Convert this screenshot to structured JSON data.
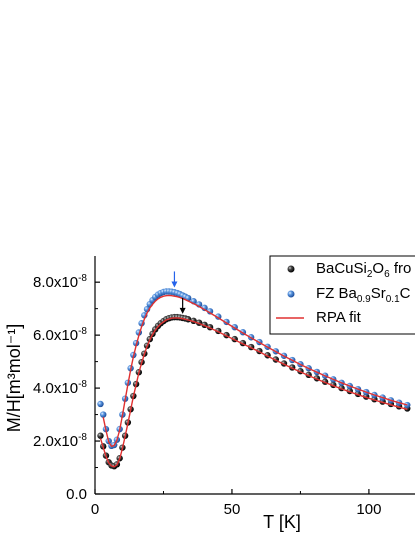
{
  "chart_data": {
    "type": "scatter",
    "xlabel": "T [K]",
    "ylabel": "M/H[m³mol⁻¹]",
    "xlim": [
      0,
      115
    ],
    "ylim": [
      0,
      8.8e-08
    ],
    "x_ticks": [
      {
        "value": 0,
        "label": "0"
      },
      {
        "value": 50,
        "label": "50"
      },
      {
        "value": 100,
        "label": "100"
      }
    ],
    "y_ticks": [
      {
        "value": 0,
        "label": "0.0"
      },
      {
        "value": 2e-08,
        "label": "2.0x10",
        "exp": "-8"
      },
      {
        "value": 4e-08,
        "label": "4.0x10",
        "exp": "-8"
      },
      {
        "value": 6e-08,
        "label": "6.0x10",
        "exp": "-8"
      },
      {
        "value": 8e-08,
        "label": "8.0x10",
        "exp": "-8"
      }
    ],
    "grid": false,
    "legend_position": "top-right",
    "legend": [
      {
        "label": "BaCuSi",
        "sub1": "2",
        "mid": "O",
        "sub2": "6",
        "tail": " fro",
        "marker": "black-sphere"
      },
      {
        "label": "FZ Ba",
        "sub1": "0.9",
        "mid": "Sr",
        "sub2": "0.1",
        "tail": "C",
        "marker": "blue-sphere"
      },
      {
        "label": "RPA fit",
        "marker": "red-line"
      }
    ],
    "annotations": [
      {
        "type": "arrow",
        "x": 29,
        "y": 7.65e-08,
        "color": "#2563eb"
      },
      {
        "type": "arrow",
        "x": 32,
        "y": 6.65e-08,
        "color": "#000000"
      }
    ],
    "series": [
      {
        "marker": "black-sphere",
        "color": "#1a1a1a",
        "x": [
          2,
          3,
          4,
          5,
          6,
          7,
          8,
          9,
          10,
          11,
          12,
          13,
          14,
          15,
          16,
          17,
          18,
          19,
          20,
          21,
          22,
          23,
          24,
          25,
          26,
          27,
          28,
          29,
          30,
          31,
          32,
          33,
          34,
          36,
          38,
          40,
          42,
          45,
          48,
          51,
          54,
          57,
          60,
          63,
          66,
          69,
          72,
          75,
          78,
          81,
          84,
          87,
          90,
          93,
          96,
          99,
          102,
          105,
          108,
          111,
          114
        ],
        "y": [
          2.2e-08,
          1.8e-08,
          1.45e-08,
          1.2e-08,
          1.08e-08,
          1.05e-08,
          1.12e-08,
          1.35e-08,
          1.75e-08,
          2.2e-08,
          2.7e-08,
          3.2e-08,
          3.7e-08,
          4.15e-08,
          4.6e-08,
          4.98e-08,
          5.3e-08,
          5.6e-08,
          5.85e-08,
          6.05e-08,
          6.22e-08,
          6.35e-08,
          6.45e-08,
          6.53e-08,
          6.6e-08,
          6.64e-08,
          6.67e-08,
          6.68e-08,
          6.68e-08,
          6.67e-08,
          6.65e-08,
          6.63e-08,
          6.6e-08,
          6.54e-08,
          6.47e-08,
          6.39e-08,
          6.3e-08,
          6.16e-08,
          6e-08,
          5.85e-08,
          5.7e-08,
          5.55e-08,
          5.4e-08,
          5.24e-08,
          5.08e-08,
          4.93e-08,
          4.78e-08,
          4.64e-08,
          4.5e-08,
          4.37e-08,
          4.24e-08,
          4.12e-08,
          4e-08,
          3.89e-08,
          3.78e-08,
          3.68e-08,
          3.58e-08,
          3.49e-08,
          3.4e-08,
          3.31e-08,
          3.23e-08
        ]
      },
      {
        "marker": "blue-sphere",
        "color": "#4a86d4",
        "x": [
          2,
          3,
          4,
          5,
          6,
          7,
          8,
          9,
          10,
          11,
          12,
          13,
          14,
          15,
          16,
          17,
          18,
          19,
          20,
          21,
          22,
          23,
          24,
          25,
          26,
          27,
          28,
          29,
          30,
          31,
          32,
          33,
          34,
          36,
          38,
          40,
          42,
          45,
          48,
          51,
          54,
          57,
          60,
          63,
          66,
          69,
          72,
          75,
          78,
          81,
          84,
          87,
          90,
          93,
          96,
          99,
          102,
          105,
          108,
          111,
          114
        ],
        "y": [
          3.4e-08,
          3e-08,
          2.45e-08,
          2e-08,
          1.82e-08,
          1.85e-08,
          2.05e-08,
          2.45e-08,
          3e-08,
          3.6e-08,
          4.2e-08,
          4.75e-08,
          5.25e-08,
          5.7e-08,
          6.1e-08,
          6.45e-08,
          6.75e-08,
          6.98e-08,
          7.17e-08,
          7.32e-08,
          7.44e-08,
          7.53e-08,
          7.59e-08,
          7.63e-08,
          7.65e-08,
          7.65e-08,
          7.64e-08,
          7.62e-08,
          7.59e-08,
          7.55e-08,
          7.5e-08,
          7.45e-08,
          7.4e-08,
          7.28e-08,
          7.16e-08,
          7.03e-08,
          6.9e-08,
          6.7e-08,
          6.5e-08,
          6.3e-08,
          6.11e-08,
          5.92e-08,
          5.74e-08,
          5.56e-08,
          5.39e-08,
          5.22e-08,
          5.06e-08,
          4.9e-08,
          4.75e-08,
          4.61e-08,
          4.47e-08,
          4.33e-08,
          4.2e-08,
          4.08e-08,
          3.96e-08,
          3.85e-08,
          3.74e-08,
          3.64e-08,
          3.54e-08,
          3.45e-08,
          3.36e-08
        ]
      },
      {
        "marker": "red-line",
        "color": "#e03030",
        "fits": [
          {
            "x": [
              2,
              4,
              5,
              6,
              7,
              8,
              9,
              10,
              11,
              12,
              13,
              14,
              15,
              16,
              17,
              18,
              19,
              20,
              21,
              22,
              23,
              24,
              25,
              26,
              27,
              28,
              29,
              30,
              31,
              32,
              33,
              34,
              36,
              38,
              40,
              42,
              45,
              48,
              51,
              54,
              57,
              60,
              63,
              66,
              69,
              72,
              75,
              78,
              81,
              84,
              87,
              90,
              93,
              96,
              99,
              102,
              105,
              108,
              111,
              114
            ],
            "y": [
              2.1e-08,
              1.42e-08,
              1.18e-08,
              1.06e-08,
              1.03e-08,
              1.1e-08,
              1.33e-08,
              1.72e-08,
              2.17e-08,
              2.67e-08,
              3.17e-08,
              3.67e-08,
              4.12e-08,
              4.57e-08,
              4.95e-08,
              5.27e-08,
              5.57e-08,
              5.82e-08,
              6.02e-08,
              6.19e-08,
              6.32e-08,
              6.42e-08,
              6.5e-08,
              6.57e-08,
              6.61e-08,
              6.64e-08,
              6.65e-08,
              6.65e-08,
              6.64e-08,
              6.62e-08,
              6.6e-08,
              6.57e-08,
              6.51e-08,
              6.44e-08,
              6.36e-08,
              6.27e-08,
              6.13e-08,
              5.97e-08,
              5.82e-08,
              5.67e-08,
              5.52e-08,
              5.37e-08,
              5.21e-08,
              5.05e-08,
              4.9e-08,
              4.75e-08,
              4.61e-08,
              4.47e-08,
              4.34e-08,
              4.21e-08,
              4.09e-08,
              3.97e-08,
              3.86e-08,
              3.75e-08,
              3.65e-08,
              3.55e-08,
              3.46e-08,
              3.37e-08,
              3.28e-08,
              3.2e-08
            ]
          },
          {
            "x": [
              3,
              4,
              5,
              6,
              7,
              8,
              9,
              10,
              11,
              12,
              13,
              14,
              15,
              16,
              17,
              18,
              19,
              20,
              21,
              22,
              23,
              24,
              25,
              26,
              27,
              28,
              29,
              30,
              31,
              32,
              33,
              34,
              36,
              38,
              40,
              42,
              45,
              48,
              51,
              54,
              57,
              60,
              63,
              66,
              69,
              72,
              75,
              78,
              81,
              84,
              87,
              90,
              93,
              96,
              99,
              102,
              105,
              108,
              111,
              114
            ],
            "y": [
              2.9e-08,
              2.4e-08,
              1.97e-08,
              1.8e-08,
              1.83e-08,
              2.03e-08,
              2.42e-08,
              2.96e-08,
              3.55e-08,
              4.14e-08,
              4.68e-08,
              5.17e-08,
              5.6e-08,
              5.98e-08,
              6.32e-08,
              6.6e-08,
              6.83e-08,
              7.02e-08,
              7.16e-08,
              7.28e-08,
              7.37e-08,
              7.43e-08,
              7.47e-08,
              7.49e-08,
              7.5e-08,
              7.49e-08,
              7.47e-08,
              7.45e-08,
              7.42e-08,
              7.38e-08,
              7.34e-08,
              7.29e-08,
              7.19e-08,
              7.08e-08,
              6.96e-08,
              6.84e-08,
              6.65e-08,
              6.46e-08,
              6.27e-08,
              6.08e-08,
              5.9e-08,
              5.72e-08,
              5.55e-08,
              5.38e-08,
              5.21e-08,
              5.05e-08,
              4.89e-08,
              4.74e-08,
              4.6e-08,
              4.46e-08,
              4.33e-08,
              4.2e-08,
              4.08e-08,
              3.96e-08,
              3.85e-08,
              3.74e-08,
              3.64e-08,
              3.54e-08,
              3.45e-08,
              3.36e-08
            ]
          }
        ]
      }
    ]
  }
}
